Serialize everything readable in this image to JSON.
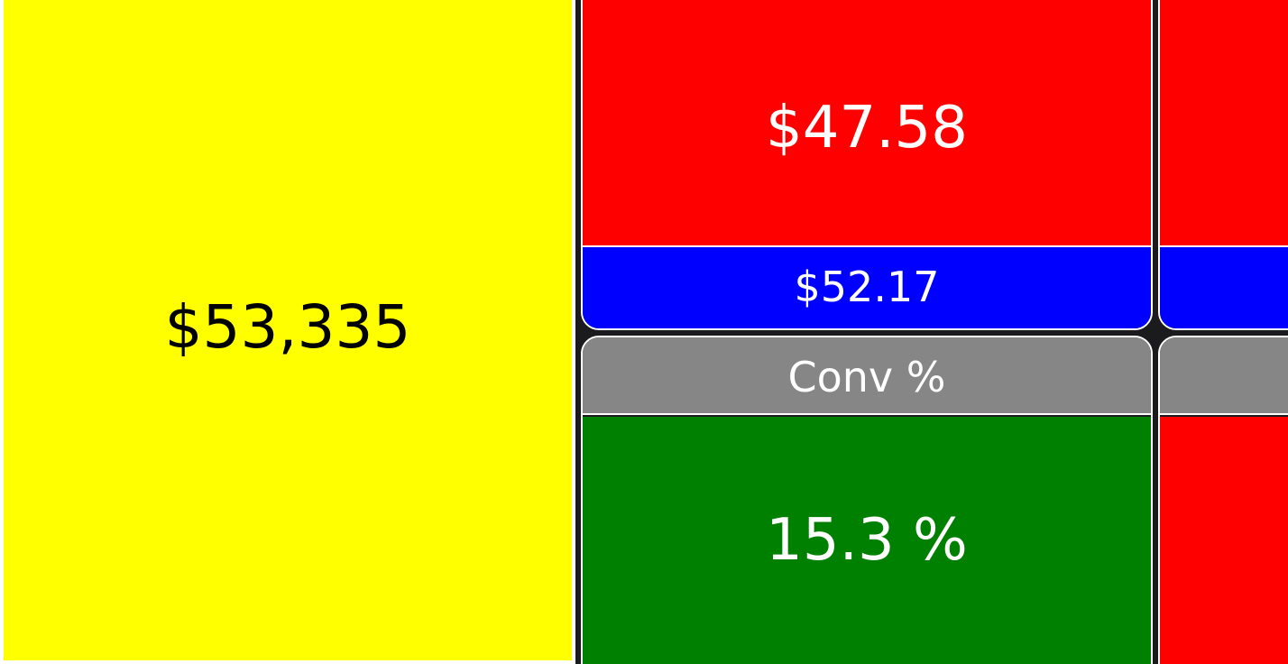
{
  "tiles": {
    "total_value": "$53,335",
    "middle": {
      "top_value": "$47.58",
      "sub_value": "$52.17",
      "metric_label": "Conv %",
      "metric_value": "15.3 %"
    },
    "right": {
      "top_value": "",
      "sub_value": "",
      "metric_label": "",
      "metric_value": ""
    }
  },
  "colors": {
    "yellow": "#ffff00",
    "red": "#ff0000",
    "blue": "#0000ff",
    "gray": "#868686",
    "green": "#008000",
    "background": "#1b1b1d"
  }
}
